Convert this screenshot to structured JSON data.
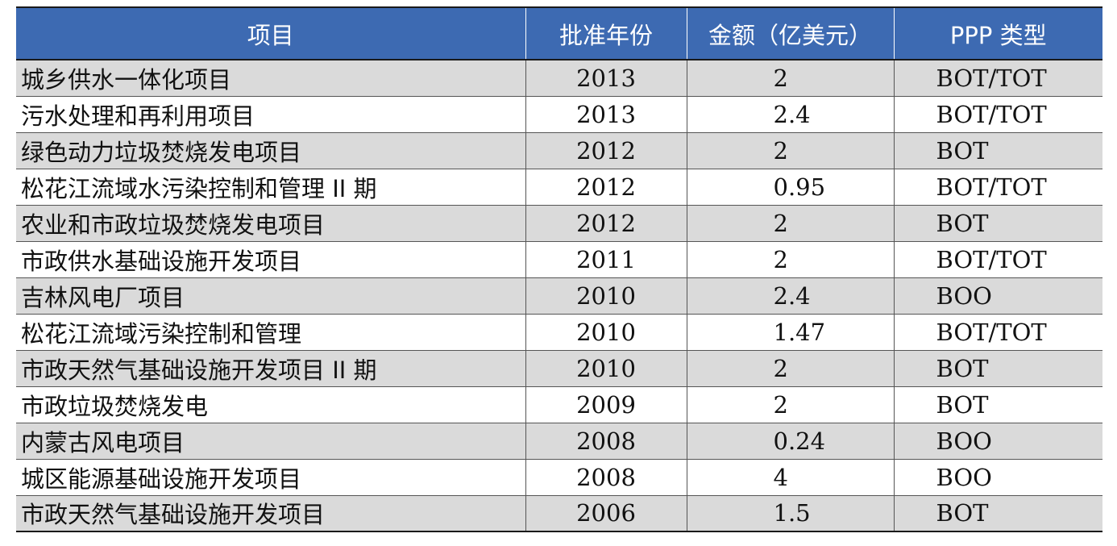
{
  "table": {
    "headers": [
      "项目",
      "批准年份",
      "金额（亿美元）",
      "PPP 类型"
    ],
    "rows": [
      [
        "城乡供水一体化项目",
        "2013",
        "2",
        "BOT/TOT"
      ],
      [
        "污水处理和再利用项目",
        "2013",
        "2.4",
        "BOT/TOT"
      ],
      [
        "绿色动力垃圾焚烧发电项目",
        "2012",
        "2",
        "BOT"
      ],
      [
        "松花江流域水污染控制和管理 II 期",
        "2012",
        "0.95",
        "BOT/TOT"
      ],
      [
        "农业和市政垃圾焚烧发电项目",
        "2012",
        "2",
        "BOT"
      ],
      [
        "市政供水基础设施开发项目",
        "2011",
        "2",
        "BOT/TOT"
      ],
      [
        "吉林风电厂项目",
        "2010",
        "2.4",
        "BOO"
      ],
      [
        "松花江流域污染控制和管理",
        "2010",
        "1.47",
        "BOT/TOT"
      ],
      [
        "市政天然气基础设施开发项目 II 期",
        "2010",
        "2",
        "BOT"
      ],
      [
        "市政垃圾焚烧发电",
        "2009",
        "2",
        "BOT"
      ],
      [
        "内蒙古风电项目",
        "2008",
        "0.24",
        "BOO"
      ],
      [
        "城区能源基础设施开发项目",
        "2008",
        "4",
        "BOO"
      ],
      [
        "市政天然气基础设施开发项目",
        "2006",
        "1.5",
        "BOT"
      ]
    ]
  },
  "colors": {
    "header_bg": "#3d6ab2",
    "header_text": "#ffffff",
    "stripe_bg": "#dadada",
    "row_bg": "#ffffff"
  }
}
